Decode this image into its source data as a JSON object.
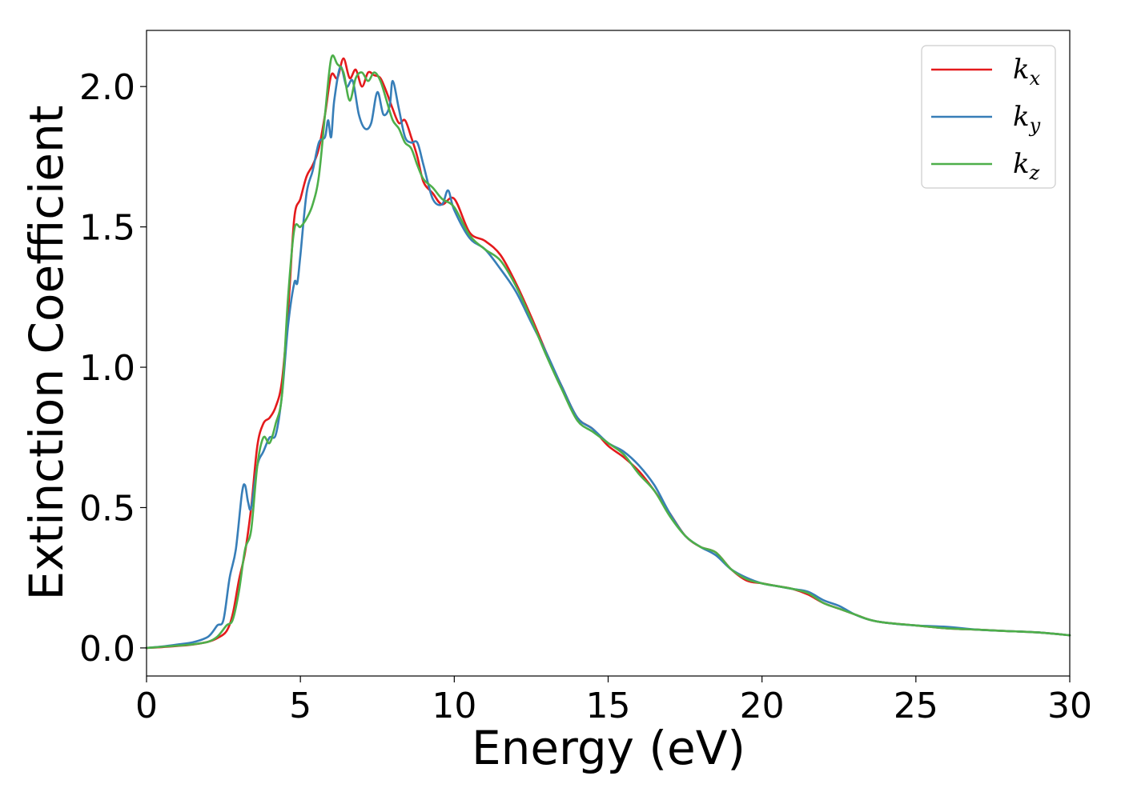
{
  "chart_data": {
    "type": "line",
    "xlabel": "Energy (eV)",
    "ylabel": "Extinction Coefficient",
    "xlim": [
      0,
      30
    ],
    "ylim": [
      -0.1,
      2.2
    ],
    "xticks": [
      0,
      5,
      10,
      15,
      20,
      25,
      30
    ],
    "xtick_labels": [
      "0",
      "5",
      "10",
      "15",
      "20",
      "25",
      "30"
    ],
    "yticks": [
      0.0,
      0.5,
      1.0,
      1.5,
      2.0
    ],
    "ytick_labels": [
      "0.0",
      "0.5",
      "1.0",
      "1.5",
      "2.0"
    ],
    "grid": false,
    "legend_position": "top-right",
    "series": [
      {
        "name": "k",
        "subscript": "x",
        "color": "#e41a1c",
        "x": [
          0,
          0.5,
          1,
          1.5,
          2,
          2.3,
          2.6,
          2.8,
          3.0,
          3.2,
          3.4,
          3.6,
          3.8,
          4.0,
          4.2,
          4.4,
          4.6,
          4.8,
          5.0,
          5.2,
          5.4,
          5.6,
          5.8,
          6.0,
          6.2,
          6.4,
          6.6,
          6.8,
          7.0,
          7.2,
          7.4,
          7.6,
          7.8,
          8.0,
          8.2,
          8.4,
          8.6,
          8.8,
          9.0,
          9.3,
          9.6,
          10.0,
          10.5,
          11.0,
          11.5,
          12.0,
          12.5,
          13.0,
          13.5,
          14.0,
          14.5,
          15.0,
          15.5,
          16.0,
          16.5,
          17.0,
          17.5,
          18.0,
          18.5,
          19.0,
          19.5,
          20.0,
          20.5,
          21.0,
          21.5,
          22.0,
          22.5,
          23.0,
          23.5,
          24.0,
          25.0,
          26.0,
          27.0,
          28.0,
          29.0,
          30.0
        ],
        "y": [
          0.0,
          0.003,
          0.007,
          0.012,
          0.022,
          0.035,
          0.06,
          0.12,
          0.24,
          0.34,
          0.5,
          0.72,
          0.8,
          0.82,
          0.86,
          0.95,
          1.2,
          1.53,
          1.6,
          1.68,
          1.72,
          1.78,
          1.9,
          2.04,
          2.03,
          2.1,
          2.03,
          2.06,
          2.0,
          2.05,
          2.04,
          2.03,
          1.98,
          1.92,
          1.87,
          1.88,
          1.82,
          1.75,
          1.66,
          1.62,
          1.58,
          1.6,
          1.48,
          1.45,
          1.4,
          1.3,
          1.18,
          1.05,
          0.93,
          0.82,
          0.78,
          0.72,
          0.68,
          0.63,
          0.56,
          0.48,
          0.4,
          0.36,
          0.34,
          0.28,
          0.24,
          0.23,
          0.22,
          0.21,
          0.19,
          0.16,
          0.14,
          0.12,
          0.1,
          0.09,
          0.08,
          0.07,
          0.065,
          0.06,
          0.055,
          0.045
        ]
      },
      {
        "name": "k",
        "subscript": "y",
        "color": "#377eb8",
        "x": [
          0,
          0.5,
          1,
          1.5,
          2,
          2.3,
          2.5,
          2.7,
          2.9,
          3.1,
          3.2,
          3.3,
          3.4,
          3.6,
          3.8,
          4.0,
          4.2,
          4.4,
          4.6,
          4.8,
          4.9,
          5.0,
          5.2,
          5.4,
          5.6,
          5.8,
          5.9,
          6.0,
          6.1,
          6.3,
          6.5,
          6.7,
          6.9,
          7.1,
          7.3,
          7.5,
          7.7,
          7.9,
          8.0,
          8.2,
          8.4,
          8.6,
          8.8,
          9.0,
          9.3,
          9.6,
          9.8,
          10.0,
          10.5,
          11.0,
          11.5,
          12.0,
          12.5,
          13.0,
          13.5,
          14.0,
          14.5,
          15.0,
          15.5,
          16.0,
          16.5,
          17.0,
          17.5,
          18.0,
          18.5,
          19.0,
          19.5,
          20.0,
          20.5,
          21.0,
          21.5,
          22.0,
          22.5,
          23.0,
          23.5,
          24.0,
          25.0,
          26.0,
          27.0,
          28.0,
          29.0,
          30.0
        ],
        "y": [
          0.0,
          0.005,
          0.012,
          0.02,
          0.04,
          0.08,
          0.1,
          0.25,
          0.35,
          0.55,
          0.58,
          0.52,
          0.5,
          0.65,
          0.7,
          0.75,
          0.76,
          0.9,
          1.15,
          1.3,
          1.3,
          1.4,
          1.62,
          1.7,
          1.8,
          1.82,
          1.88,
          1.82,
          1.95,
          2.07,
          2.0,
          2.02,
          1.9,
          1.85,
          1.87,
          1.98,
          1.9,
          1.93,
          2.02,
          1.92,
          1.82,
          1.8,
          1.8,
          1.72,
          1.6,
          1.58,
          1.63,
          1.56,
          1.46,
          1.42,
          1.35,
          1.27,
          1.16,
          1.05,
          0.93,
          0.82,
          0.78,
          0.73,
          0.7,
          0.65,
          0.58,
          0.48,
          0.4,
          0.36,
          0.33,
          0.28,
          0.25,
          0.23,
          0.22,
          0.21,
          0.2,
          0.17,
          0.15,
          0.12,
          0.1,
          0.09,
          0.08,
          0.075,
          0.065,
          0.06,
          0.055,
          0.045
        ]
      },
      {
        "name": "k",
        "subscript": "z",
        "color": "#4daf4a",
        "x": [
          0,
          0.5,
          1,
          1.5,
          2,
          2.3,
          2.6,
          2.8,
          3.0,
          3.2,
          3.4,
          3.6,
          3.8,
          4.0,
          4.2,
          4.4,
          4.6,
          4.8,
          5.0,
          5.2,
          5.4,
          5.6,
          5.8,
          6.0,
          6.2,
          6.4,
          6.6,
          6.8,
          7.0,
          7.2,
          7.4,
          7.6,
          7.8,
          8.0,
          8.2,
          8.4,
          8.6,
          8.8,
          9.0,
          9.3,
          9.6,
          10.0,
          10.5,
          11.0,
          11.5,
          12.0,
          12.5,
          13.0,
          13.5,
          14.0,
          14.5,
          15.0,
          15.5,
          16.0,
          16.5,
          17.0,
          17.5,
          18.0,
          18.5,
          19.0,
          19.5,
          20.0,
          20.5,
          21.0,
          21.5,
          22.0,
          22.5,
          23.0,
          23.5,
          24.0,
          25.0,
          26.0,
          27.0,
          28.0,
          29.0,
          30.0
        ],
        "y": [
          0.0,
          0.004,
          0.008,
          0.013,
          0.022,
          0.04,
          0.08,
          0.1,
          0.2,
          0.35,
          0.42,
          0.65,
          0.75,
          0.73,
          0.8,
          0.9,
          1.25,
          1.49,
          1.5,
          1.53,
          1.58,
          1.68,
          1.9,
          2.1,
          2.08,
          2.05,
          1.95,
          2.03,
          2.05,
          2.02,
          2.05,
          2.02,
          1.95,
          1.88,
          1.85,
          1.8,
          1.78,
          1.72,
          1.67,
          1.64,
          1.6,
          1.57,
          1.47,
          1.42,
          1.38,
          1.29,
          1.17,
          1.04,
          0.92,
          0.81,
          0.77,
          0.73,
          0.69,
          0.62,
          0.56,
          0.47,
          0.4,
          0.36,
          0.34,
          0.28,
          0.245,
          0.23,
          0.22,
          0.21,
          0.195,
          0.16,
          0.14,
          0.12,
          0.1,
          0.09,
          0.08,
          0.07,
          0.065,
          0.06,
          0.055,
          0.045
        ]
      }
    ]
  }
}
